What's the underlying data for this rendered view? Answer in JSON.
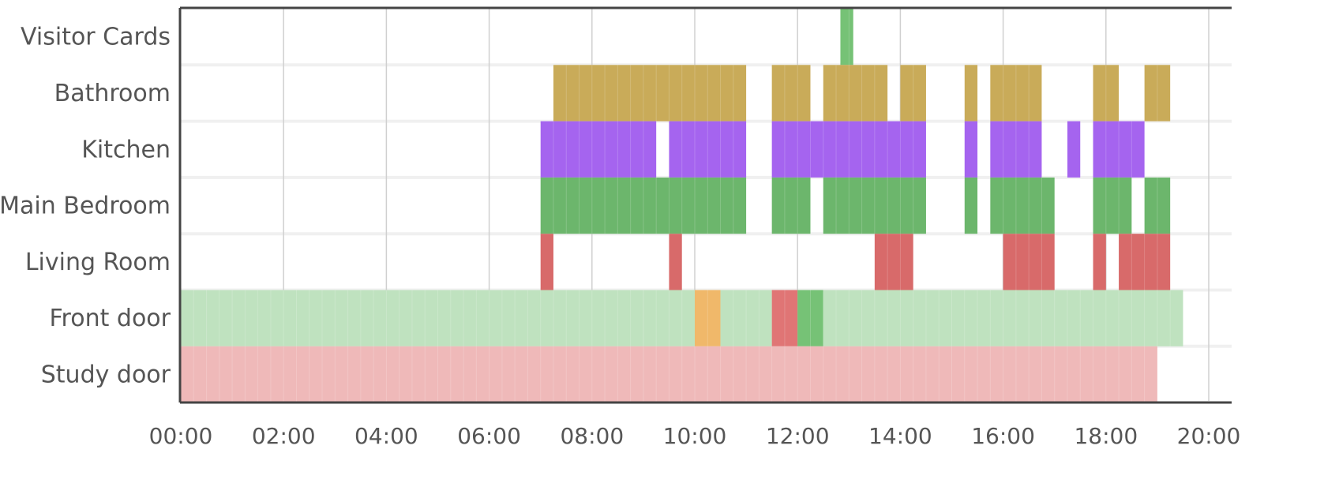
{
  "chart_data": {
    "type": "timeline",
    "x_axis": {
      "unit": "time of day",
      "min": "00:00",
      "max": "20:00",
      "tick_labels": [
        "00:00",
        "02:00",
        "04:00",
        "06:00",
        "08:00",
        "10:00",
        "12:00",
        "14:00",
        "16:00",
        "18:00",
        "20:00"
      ]
    },
    "grid": true,
    "colors": {
      "bathroom": "#c9ab59",
      "kitchen": "#a564ef",
      "bedroom": "#6cb66c",
      "living": "#d86a6a",
      "door_closed": "#bfe2bf",
      "door_open": "#76c276",
      "door_alert": "#e07575",
      "door_warning": "#f0b86a",
      "study": "#efb9b9",
      "visitor": "#76c276"
    },
    "rows": [
      {
        "label": "Visitor Cards",
        "segments": [
          {
            "start": "12:50",
            "end": "13:05",
            "color": "visitor"
          }
        ]
      },
      {
        "label": "Bathroom",
        "segments": [
          {
            "start": "07:15",
            "end": "11:00",
            "color": "bathroom"
          },
          {
            "start": "11:30",
            "end": "12:15",
            "color": "bathroom"
          },
          {
            "start": "12:30",
            "end": "13:45",
            "color": "bathroom"
          },
          {
            "start": "14:00",
            "end": "14:30",
            "color": "bathroom"
          },
          {
            "start": "15:15",
            "end": "15:30",
            "color": "bathroom"
          },
          {
            "start": "15:45",
            "end": "16:45",
            "color": "bathroom"
          },
          {
            "start": "17:45",
            "end": "18:15",
            "color": "bathroom"
          },
          {
            "start": "18:45",
            "end": "19:15",
            "color": "bathroom"
          }
        ]
      },
      {
        "label": "Kitchen",
        "segments": [
          {
            "start": "07:00",
            "end": "09:15",
            "color": "kitchen"
          },
          {
            "start": "09:30",
            "end": "11:00",
            "color": "kitchen"
          },
          {
            "start": "11:30",
            "end": "14:30",
            "color": "kitchen"
          },
          {
            "start": "15:15",
            "end": "15:30",
            "color": "kitchen"
          },
          {
            "start": "15:45",
            "end": "16:45",
            "color": "kitchen"
          },
          {
            "start": "17:15",
            "end": "17:30",
            "color": "kitchen"
          },
          {
            "start": "17:45",
            "end": "18:45",
            "color": "kitchen"
          }
        ]
      },
      {
        "label": "Main Bedroom",
        "segments": [
          {
            "start": "07:00",
            "end": "11:00",
            "color": "bedroom"
          },
          {
            "start": "11:30",
            "end": "12:15",
            "color": "bedroom"
          },
          {
            "start": "12:30",
            "end": "14:30",
            "color": "bedroom"
          },
          {
            "start": "15:15",
            "end": "15:30",
            "color": "bedroom"
          },
          {
            "start": "15:45",
            "end": "17:00",
            "color": "bedroom"
          },
          {
            "start": "17:45",
            "end": "18:30",
            "color": "bedroom"
          },
          {
            "start": "18:45",
            "end": "19:15",
            "color": "bedroom"
          }
        ]
      },
      {
        "label": "Living Room",
        "segments": [
          {
            "start": "07:00",
            "end": "07:15",
            "color": "living"
          },
          {
            "start": "09:30",
            "end": "09:45",
            "color": "living"
          },
          {
            "start": "13:30",
            "end": "14:15",
            "color": "living"
          },
          {
            "start": "16:00",
            "end": "17:00",
            "color": "living"
          },
          {
            "start": "17:45",
            "end": "18:00",
            "color": "living"
          },
          {
            "start": "18:15",
            "end": "19:15",
            "color": "living"
          }
        ]
      },
      {
        "label": "Front door",
        "segments": [
          {
            "start": "00:00",
            "end": "10:00",
            "color": "door_closed"
          },
          {
            "start": "10:00",
            "end": "10:30",
            "color": "door_warning"
          },
          {
            "start": "10:30",
            "end": "11:30",
            "color": "door_closed"
          },
          {
            "start": "11:30",
            "end": "12:00",
            "color": "door_alert"
          },
          {
            "start": "12:00",
            "end": "12:30",
            "color": "door_open"
          },
          {
            "start": "12:30",
            "end": "19:30",
            "color": "door_closed"
          }
        ]
      },
      {
        "label": "Study door",
        "segments": [
          {
            "start": "00:00",
            "end": "19:00",
            "color": "study"
          }
        ]
      }
    ]
  }
}
